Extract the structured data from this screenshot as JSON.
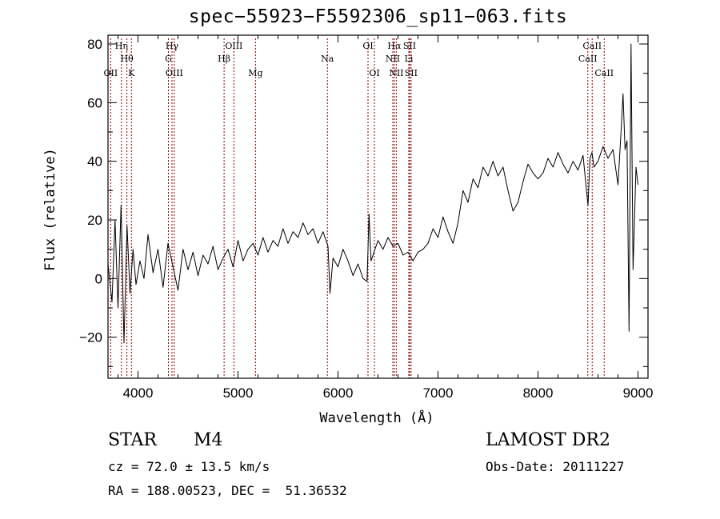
{
  "chart_data": {
    "type": "line",
    "title": "spec−55923−F5592306_sp11−063.fits",
    "xlabel": "Wavelength (Å)",
    "ylabel": "Flux (relative)",
    "xlim": [
      3700,
      9100
    ],
    "ylim": [
      -34,
      83
    ],
    "xticks": [
      4000,
      5000,
      6000,
      7000,
      8000,
      9000
    ],
    "yticks": [
      -20,
      0,
      20,
      40,
      60,
      80
    ],
    "ytick_labels": [
      "−20",
      "0",
      "20",
      "40",
      "60",
      "80"
    ],
    "grid": false,
    "legend": "none",
    "line_color": "#000000",
    "marker_color": "#8b0000",
    "series": [
      {
        "values_note_x": "Angstrom",
        "x": [
          3700,
          3740,
          3770,
          3800,
          3830,
          3860,
          3890,
          3920,
          3950,
          3980,
          4020,
          4060,
          4100,
          4150,
          4200,
          4250,
          4300,
          4350,
          4400,
          4450,
          4500,
          4550,
          4600,
          4650,
          4700,
          4750,
          4800,
          4850,
          4900,
          4950,
          5000,
          5050,
          5100,
          5150,
          5200,
          5250,
          5300,
          5350,
          5400,
          5450,
          5500,
          5550,
          5600,
          5650,
          5700,
          5750,
          5800,
          5850,
          5900,
          5920,
          5950,
          6000,
          6050,
          6100,
          6150,
          6200,
          6250,
          6290,
          6310,
          6330,
          6360,
          6400,
          6450,
          6500,
          6550,
          6600,
          6650,
          6700,
          6750,
          6800,
          6850,
          6900,
          6950,
          7000,
          7050,
          7100,
          7150,
          7200,
          7250,
          7300,
          7350,
          7400,
          7450,
          7500,
          7550,
          7600,
          7650,
          7700,
          7750,
          7800,
          7850,
          7900,
          7950,
          8000,
          8050,
          8100,
          8150,
          8200,
          8250,
          8300,
          8350,
          8400,
          8450,
          8500,
          8520,
          8540,
          8560,
          8600,
          8650,
          8700,
          8750,
          8800,
          8830,
          8850,
          8870,
          8890,
          8910,
          8930,
          8950,
          8980,
          9000
        ],
        "y": [
          5,
          -8,
          20,
          -10,
          25,
          -22,
          18,
          -5,
          10,
          -2,
          6,
          0,
          15,
          2,
          10,
          -3,
          12,
          4,
          -4,
          10,
          3,
          9,
          1,
          8,
          5,
          11,
          3,
          7,
          10,
          4,
          13,
          6,
          10,
          12,
          8,
          14,
          9,
          13,
          11,
          17,
          12,
          16,
          14,
          19,
          15,
          17,
          12,
          16,
          11,
          -5,
          7,
          4,
          10,
          6,
          1,
          5,
          0,
          -1,
          22,
          6,
          9,
          13,
          10,
          14,
          11,
          12,
          8,
          9,
          6,
          9,
          10,
          12,
          17,
          14,
          21,
          16,
          12,
          19,
          30,
          26,
          34,
          31,
          38,
          35,
          40,
          35,
          38,
          30,
          23,
          26,
          33,
          39,
          36,
          34,
          36,
          41,
          38,
          43,
          39,
          36,
          40,
          37,
          42,
          25,
          41,
          43,
          38,
          40,
          45,
          41,
          44,
          32,
          50,
          63,
          44,
          47,
          -18,
          80,
          3,
          38,
          32
        ]
      }
    ],
    "lines": [
      {
        "label": "OII",
        "wl": 3727,
        "row": 3
      },
      {
        "label": "Hη",
        "wl": 3835,
        "row": 1
      },
      {
        "label": "Hθ",
        "wl": 3889,
        "row": 2
      },
      {
        "label": "K",
        "wl": 3934,
        "row": 3
      },
      {
        "label": "Hγ",
        "wl": 4340,
        "row": 1
      },
      {
        "label": "G",
        "wl": 4304,
        "row": 2
      },
      {
        "label": "OIII",
        "wl": 4363,
        "row": 3
      },
      {
        "label": "OIII",
        "wl": 4959,
        "row": 1
      },
      {
        "label": "Hβ",
        "wl": 4861,
        "row": 2
      },
      {
        "label": "Mg",
        "wl": 5175,
        "row": 3
      },
      {
        "label": "Na",
        "wl": 5894,
        "row": 2
      },
      {
        "label": "OI",
        "wl": 6300,
        "row": 1
      },
      {
        "label": "OI",
        "wl": 6364,
        "row": 3
      },
      {
        "label": "Hα",
        "wl": 6563,
        "row": 1
      },
      {
        "label": "SII",
        "wl": 6716,
        "row": 1
      },
      {
        "label": "NII",
        "wl": 6548,
        "row": 2
      },
      {
        "label": "Li",
        "wl": 6708,
        "row": 2
      },
      {
        "label": "NII",
        "wl": 6583,
        "row": 3
      },
      {
        "label": "SII",
        "wl": 6731,
        "row": 3
      },
      {
        "label": "CaII",
        "wl": 8542,
        "row": 1
      },
      {
        "label": "CaII",
        "wl": 8498,
        "row": 2
      },
      {
        "label": "CaII",
        "wl": 8662,
        "row": 3
      }
    ]
  },
  "info": {
    "class": "STAR",
    "subclass": "M4",
    "survey": "LAMOST DR2",
    "cz": "cz = 72.0 ± 13.5 km/s",
    "obs_date": "Obs-Date: 20111227",
    "radec": "RA = 188.00523, DEC =  51.36532"
  }
}
